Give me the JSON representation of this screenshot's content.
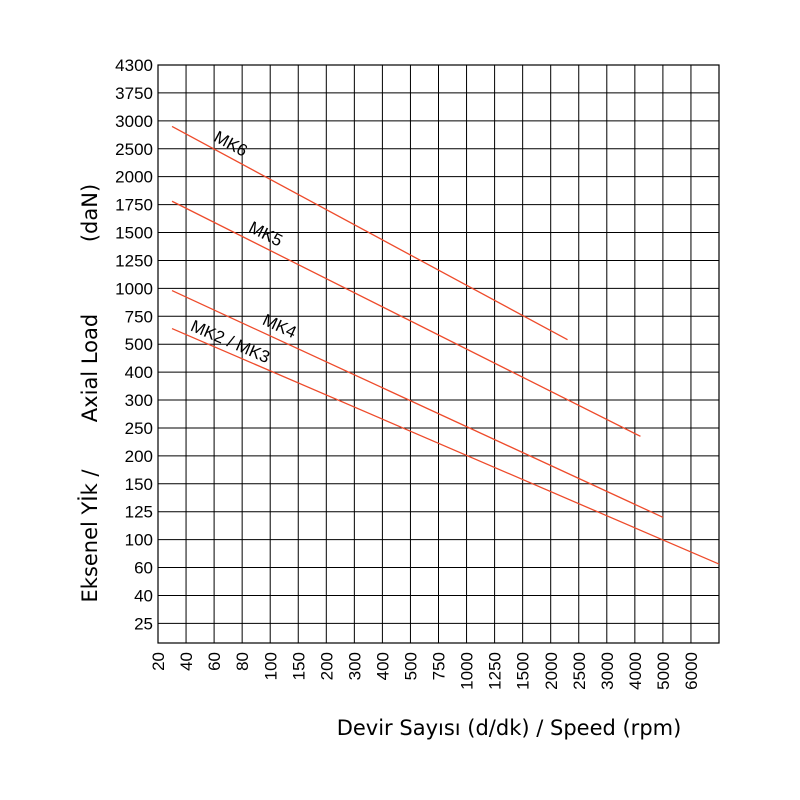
{
  "chart_data": {
    "type": "line",
    "title": "",
    "xlabel": "Devir Sayısı (d/dk) / Speed (rpm)",
    "ylabel_tr": "Eksenel Yİk /",
    "ylabel_en": "Axial Load",
    "ylabel_unit": "(daN)",
    "x_scale": "categorical",
    "y_scale": "categorical",
    "x_ticks": [
      "20",
      "40",
      "60",
      "80",
      "100",
      "150",
      "200",
      "300",
      "400",
      "500",
      "750",
      "1000",
      "1250",
      "1500",
      "2000",
      "2500",
      "3000",
      "4000",
      "5000",
      "6000"
    ],
    "y_ticks": [
      "4300",
      "3750",
      "3000",
      "2500",
      "2000",
      "1750",
      "1500",
      "1250",
      "1000",
      "750",
      "500",
      "400",
      "300",
      "250",
      "200",
      "150",
      "125",
      "100",
      "60",
      "40",
      "25"
    ],
    "grid": true,
    "legend": "none",
    "line_color": "#ee4b2b",
    "series": [
      {
        "name": "MK6",
        "points": [
          {
            "x": 10,
            "y": 2900
          },
          {
            "x": 1800,
            "y": 540
          }
        ]
      },
      {
        "name": "MK5",
        "points": [
          {
            "x": 10,
            "y": 1780
          },
          {
            "x": 3200,
            "y": 235
          }
        ]
      },
      {
        "name": "MK4",
        "points": [
          {
            "x": 10,
            "y": 980
          },
          {
            "x": 4000,
            "y": 120
          }
        ]
      },
      {
        "name": "MK2 / MK3",
        "points": [
          {
            "x": 10,
            "y": 640
          },
          {
            "x": 6000,
            "y": 65
          }
        ]
      }
    ]
  }
}
